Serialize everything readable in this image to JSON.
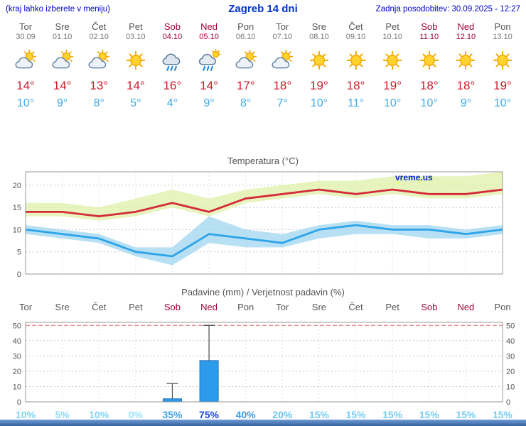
{
  "header": {
    "hint": "(kraj lahko izberete v meniju)",
    "title": "Zagreb 14 dni",
    "updated": "Zadnja posodobitev: 30.09.2025 - 12:27"
  },
  "colors": {
    "link_blue": "#0000cc",
    "title_blue": "#0033cc",
    "weekend": "#a2003c",
    "weekday": "#555555",
    "temp_max": "#cc1a2b",
    "temp_min": "#3fa9e8"
  },
  "days": [
    {
      "name": "Tor",
      "date": "30.09",
      "icon": "partly",
      "tmax": "14°",
      "tmin": "10°",
      "weekend": false
    },
    {
      "name": "Sre",
      "date": "01.10",
      "icon": "partly",
      "tmax": "14°",
      "tmin": "9°",
      "weekend": false
    },
    {
      "name": "Čet",
      "date": "02.10",
      "icon": "partly",
      "tmax": "13°",
      "tmin": "8°",
      "weekend": false
    },
    {
      "name": "Pet",
      "date": "03.10",
      "icon": "sun",
      "tmax": "14°",
      "tmin": "5°",
      "weekend": false
    },
    {
      "name": "Sob",
      "date": "04.10",
      "icon": "rain",
      "tmax": "16°",
      "tmin": "4°",
      "weekend": true
    },
    {
      "name": "Ned",
      "date": "05.10",
      "icon": "rain-sun",
      "tmax": "14°",
      "tmin": "9°",
      "weekend": true
    },
    {
      "name": "Pon",
      "date": "06.10",
      "icon": "partly",
      "tmax": "17°",
      "tmin": "8°",
      "weekend": false
    },
    {
      "name": "Tor",
      "date": "07.10",
      "icon": "partly",
      "tmax": "18°",
      "tmin": "7°",
      "weekend": false
    },
    {
      "name": "Sre",
      "date": "08.10",
      "icon": "sun",
      "tmax": "19°",
      "tmin": "10°",
      "weekend": false
    },
    {
      "name": "Čet",
      "date": "09.10",
      "icon": "sun",
      "tmax": "18°",
      "tmin": "11°",
      "weekend": false
    },
    {
      "name": "Pet",
      "date": "10.10",
      "icon": "sun",
      "tmax": "19°",
      "tmin": "10°",
      "weekend": false
    },
    {
      "name": "Sob",
      "date": "11.10",
      "icon": "sun",
      "tmax": "18°",
      "tmin": "10°",
      "weekend": true
    },
    {
      "name": "Ned",
      "date": "12.10",
      "icon": "sun",
      "tmax": "18°",
      "tmin": "9°",
      "weekend": true
    },
    {
      "name": "Pon",
      "date": "13.10",
      "icon": "sun",
      "tmax": "19°",
      "tmin": "10°",
      "weekend": false
    }
  ],
  "chart_data": [
    {
      "type": "line",
      "title": "Temperatura (°C)",
      "watermark": "vreme.us",
      "categories": [
        "Tor 30.09",
        "Sre 01.10",
        "Čet 02.10",
        "Pet 03.10",
        "Sob 04.10",
        "Ned 05.10",
        "Pon 06.10",
        "Tor 07.10",
        "Sre 08.10",
        "Čet 09.10",
        "Pet 10.10",
        "Sob 11.10",
        "Ned 12.10",
        "Pon 13.10"
      ],
      "ylim": [
        0,
        23
      ],
      "yticks": [
        0,
        5,
        10,
        15,
        20
      ],
      "series": [
        {
          "name": "max",
          "color": "#d42b3a",
          "values": [
            14,
            14,
            13,
            14,
            16,
            14,
            17,
            18,
            19,
            18,
            19,
            18,
            18,
            19
          ]
        },
        {
          "name": "min",
          "color": "#2da3e8",
          "values": [
            10,
            9,
            8,
            5,
            4,
            9,
            8,
            7,
            10,
            11,
            10,
            10,
            9,
            10
          ]
        }
      ],
      "bands": [
        {
          "name": "max-range",
          "color": "#dff0a8",
          "upper": [
            16,
            16,
            15,
            17,
            19,
            17,
            19,
            20,
            21,
            21,
            22,
            22,
            22,
            23
          ],
          "lower": [
            13,
            13,
            12,
            13,
            15,
            13,
            16,
            17,
            18,
            17,
            18,
            17,
            17,
            18
          ]
        },
        {
          "name": "min-range",
          "color": "#9fd6f0",
          "upper": [
            11,
            10,
            9,
            6,
            6,
            13,
            10,
            9,
            11,
            12,
            11,
            11,
            10,
            11
          ],
          "lower": [
            9,
            8,
            7,
            4,
            2,
            7,
            6,
            6,
            8,
            9,
            9,
            8,
            8,
            9
          ]
        }
      ],
      "legend_position": "none",
      "grid": true
    },
    {
      "type": "bar",
      "title": "Padavine (mm) / Verjetnost padavin (%)",
      "categories": [
        "Tor",
        "Sre",
        "Čet",
        "Pet",
        "Sob",
        "Ned",
        "Pon",
        "Tor",
        "Sre",
        "Čet",
        "Pet",
        "Sob",
        "Ned",
        "Pon"
      ],
      "weekend_indices": [
        4,
        5,
        11,
        12
      ],
      "ylim": [
        0,
        52
      ],
      "yticks": [
        0,
        10,
        20,
        30,
        40,
        50
      ],
      "values": [
        0,
        0,
        0,
        0,
        2,
        27,
        0,
        0,
        0,
        0,
        0,
        0,
        0,
        0
      ],
      "whisker_max": [
        0,
        0,
        0,
        0,
        12,
        50,
        0,
        0,
        0,
        0,
        0,
        0,
        0,
        0
      ],
      "bar_color": "#2e9bea",
      "probabilities": [
        {
          "label": "10%",
          "color": "#82d4f6"
        },
        {
          "label": "5%",
          "color": "#8fdaf8"
        },
        {
          "label": "10%",
          "color": "#82d4f6"
        },
        {
          "label": "0%",
          "color": "#9ae0fa"
        },
        {
          "label": "35%",
          "color": "#46a3e6"
        },
        {
          "label": "75%",
          "color": "#1e49d2"
        },
        {
          "label": "40%",
          "color": "#3d9ce4"
        },
        {
          "label": "20%",
          "color": "#68c4f0"
        },
        {
          "label": "15%",
          "color": "#74ccf3"
        },
        {
          "label": "15%",
          "color": "#74ccf3"
        },
        {
          "label": "15%",
          "color": "#74ccf3"
        },
        {
          "label": "15%",
          "color": "#74ccf3"
        },
        {
          "label": "15%",
          "color": "#74ccf3"
        },
        {
          "label": "15%",
          "color": "#74ccf3"
        }
      ],
      "grid": true
    }
  ]
}
